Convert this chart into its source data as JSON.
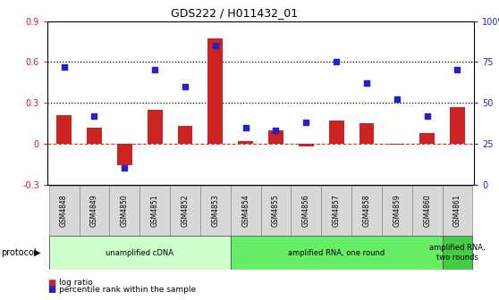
{
  "title": "GDS222 / H011432_01",
  "categories": [
    "GSM4848",
    "GSM4849",
    "GSM4850",
    "GSM4851",
    "GSM4852",
    "GSM4853",
    "GSM4854",
    "GSM4855",
    "GSM4856",
    "GSM4857",
    "GSM4858",
    "GSM4859",
    "GSM4860",
    "GSM4861"
  ],
  "log_ratio": [
    0.21,
    0.12,
    -0.16,
    0.25,
    0.13,
    0.77,
    0.02,
    0.1,
    -0.02,
    0.17,
    0.15,
    -0.01,
    0.08,
    0.27
  ],
  "percentile_pct": [
    72,
    42,
    10,
    70,
    60,
    85,
    35,
    33,
    38,
    75,
    62,
    52,
    42,
    70
  ],
  "bar_color": "#cc2222",
  "dot_color": "#2222cc",
  "left_ylim": [
    -0.3,
    0.9
  ],
  "right_ylim": [
    0,
    100
  ],
  "left_yticks": [
    -0.3,
    0.0,
    0.3,
    0.6,
    0.9
  ],
  "right_yticks": [
    0,
    25,
    50,
    75,
    100
  ],
  "left_yticklabels": [
    "-0.3",
    "0",
    "0.3",
    "0.6",
    "0.9"
  ],
  "right_yticklabels": [
    "0",
    "25",
    "50",
    "75",
    "100%"
  ],
  "hlines": [
    0.3,
    0.6
  ],
  "protocol_groups": [
    {
      "label": "unamplified cDNA",
      "start": 0,
      "end": 5,
      "color": "#ccffcc"
    },
    {
      "label": "amplified RNA, one round",
      "start": 6,
      "end": 12,
      "color": "#66ee66"
    },
    {
      "label": "amplified RNA,\ntwo rounds",
      "start": 13,
      "end": 13,
      "color": "#44cc44"
    }
  ],
  "protocol_label": "protocol",
  "legend_items": [
    {
      "color": "#cc2222",
      "label": "log ratio"
    },
    {
      "color": "#2222cc",
      "label": "percentile rank within the sample"
    }
  ],
  "bg_color": "#ffffff",
  "tick_color_left": "#cc2222",
  "tick_color_right": "#2222cc",
  "sample_box_color": "#d8d8d8"
}
